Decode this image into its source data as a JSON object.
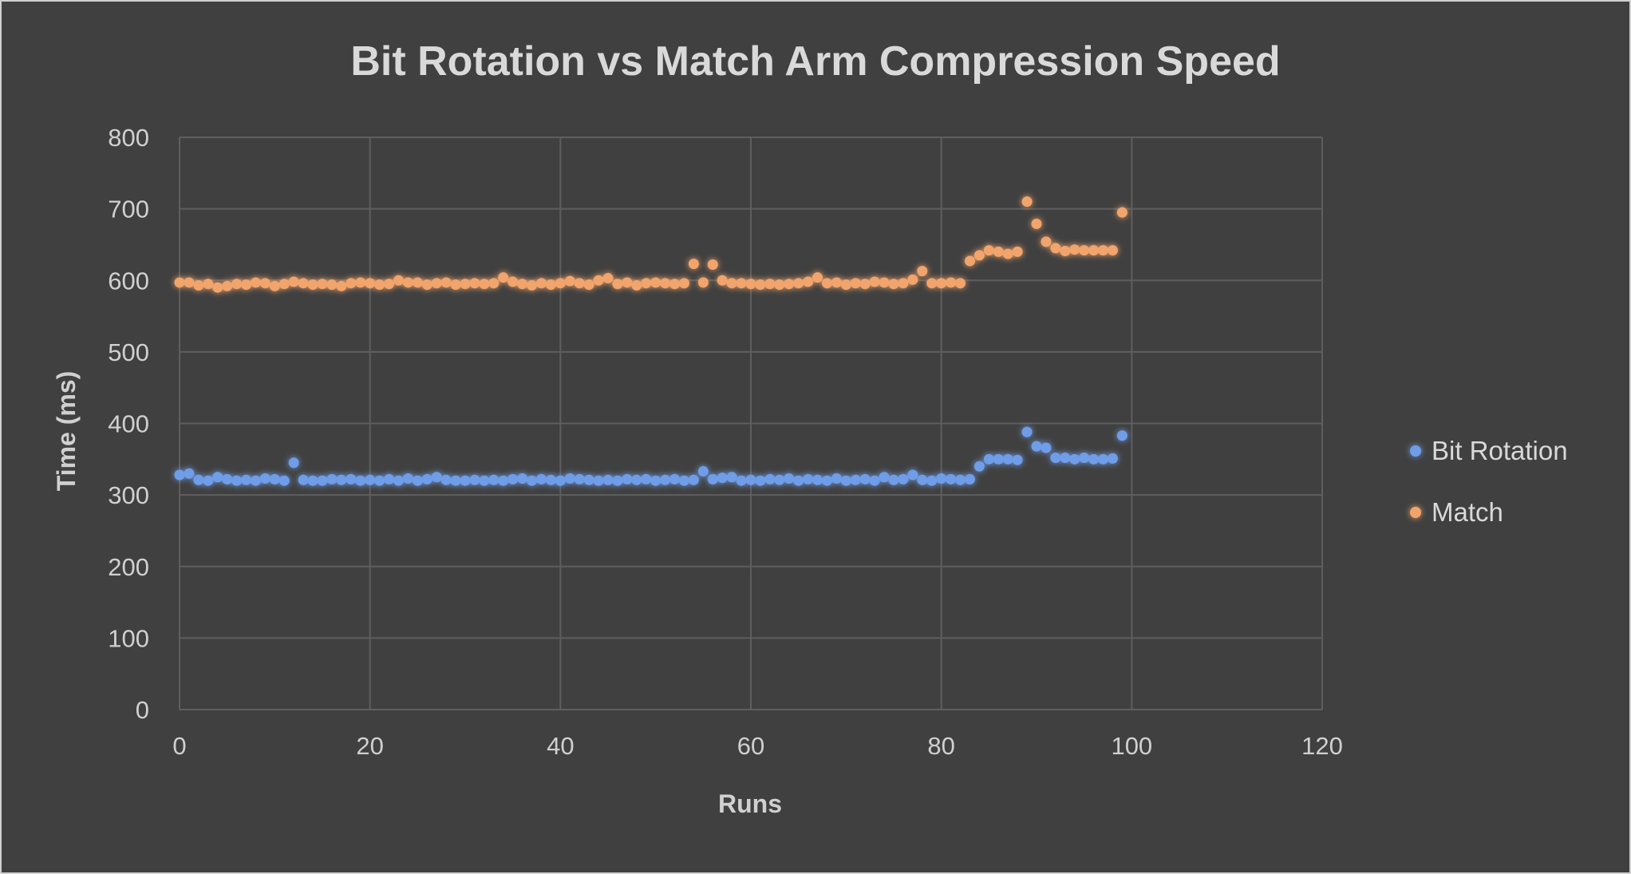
{
  "chart_data": {
    "type": "scatter",
    "title": "Bit Rotation vs Match Arm Compression Speed",
    "xlabel": "Runs",
    "ylabel": "Time (ms)",
    "xlim": [
      0,
      120
    ],
    "ylim": [
      0,
      800
    ],
    "xticks": [
      0,
      20,
      40,
      60,
      80,
      100,
      120
    ],
    "yticks": [
      0,
      100,
      200,
      300,
      400,
      500,
      600,
      700,
      800
    ],
    "grid": true,
    "legend_position": "right",
    "background": "#404040",
    "series": [
      {
        "name": "Bit Rotation",
        "color": "#6F9DE8",
        "x": [
          0,
          1,
          2,
          3,
          4,
          5,
          6,
          7,
          8,
          9,
          10,
          11,
          12,
          13,
          14,
          15,
          16,
          17,
          18,
          19,
          20,
          21,
          22,
          23,
          24,
          25,
          26,
          27,
          28,
          29,
          30,
          31,
          32,
          33,
          34,
          35,
          36,
          37,
          38,
          39,
          40,
          41,
          42,
          43,
          44,
          45,
          46,
          47,
          48,
          49,
          50,
          51,
          52,
          53,
          54,
          55,
          56,
          57,
          58,
          59,
          60,
          61,
          62,
          63,
          64,
          65,
          66,
          67,
          68,
          69,
          70,
          71,
          72,
          73,
          74,
          75,
          76,
          77,
          78,
          79,
          80,
          81,
          82,
          83,
          84,
          85,
          86,
          87,
          88,
          89,
          90,
          91,
          92,
          93,
          94,
          95,
          96,
          97,
          98,
          99
        ],
        "y": [
          328,
          330,
          321,
          320,
          325,
          322,
          320,
          321,
          320,
          323,
          322,
          320,
          345,
          321,
          320,
          320,
          322,
          321,
          322,
          320,
          321,
          320,
          322,
          320,
          323,
          320,
          322,
          325,
          321,
          320,
          320,
          321,
          320,
          321,
          320,
          322,
          323,
          320,
          322,
          321,
          320,
          323,
          322,
          321,
          320,
          321,
          320,
          322,
          321,
          322,
          320,
          321,
          322,
          320,
          321,
          333,
          322,
          324,
          325,
          320,
          321,
          320,
          322,
          321,
          323,
          320,
          322,
          321,
          320,
          323,
          320,
          321,
          322,
          320,
          325,
          321,
          322,
          328,
          321,
          320,
          323,
          322,
          321,
          322,
          340,
          350,
          350,
          350,
          349,
          388,
          368,
          366,
          352,
          352,
          350,
          352,
          350,
          350,
          351,
          383
        ]
      },
      {
        "name": "Match",
        "color": "#F1A46C",
        "x": [
          0,
          1,
          2,
          3,
          4,
          5,
          6,
          7,
          8,
          9,
          10,
          11,
          12,
          13,
          14,
          15,
          16,
          17,
          18,
          19,
          20,
          21,
          22,
          23,
          24,
          25,
          26,
          27,
          28,
          29,
          30,
          31,
          32,
          33,
          34,
          35,
          36,
          37,
          38,
          39,
          40,
          41,
          42,
          43,
          44,
          45,
          46,
          47,
          48,
          49,
          50,
          51,
          52,
          53,
          54,
          55,
          56,
          57,
          58,
          59,
          60,
          61,
          62,
          63,
          64,
          65,
          66,
          67,
          68,
          69,
          70,
          71,
          72,
          73,
          74,
          75,
          76,
          77,
          78,
          79,
          80,
          81,
          82,
          83,
          84,
          85,
          86,
          87,
          88,
          89,
          90,
          91,
          92,
          93,
          94,
          95,
          96,
          97,
          98,
          99
        ],
        "y": [
          597,
          597,
          593,
          595,
          590,
          592,
          595,
          594,
          597,
          596,
          592,
          595,
          598,
          596,
          594,
          595,
          594,
          592,
          596,
          597,
          596,
          594,
          595,
          600,
          597,
          597,
          594,
          596,
          597,
          594,
          595,
          596,
          595,
          596,
          604,
          598,
          595,
          593,
          596,
          594,
          596,
          599,
          596,
          594,
          600,
          603,
          595,
          597,
          593,
          596,
          597,
          596,
          595,
          596,
          623,
          597,
          622,
          600,
          596,
          596,
          595,
          594,
          595,
          594,
          595,
          596,
          598,
          604,
          596,
          597,
          594,
          596,
          595,
          598,
          597,
          595,
          596,
          601,
          613,
          596,
          596,
          597,
          596,
          627,
          635,
          642,
          640,
          637,
          640,
          710,
          679,
          654,
          645,
          641,
          643,
          642,
          642,
          642,
          642,
          695
        ]
      }
    ]
  }
}
